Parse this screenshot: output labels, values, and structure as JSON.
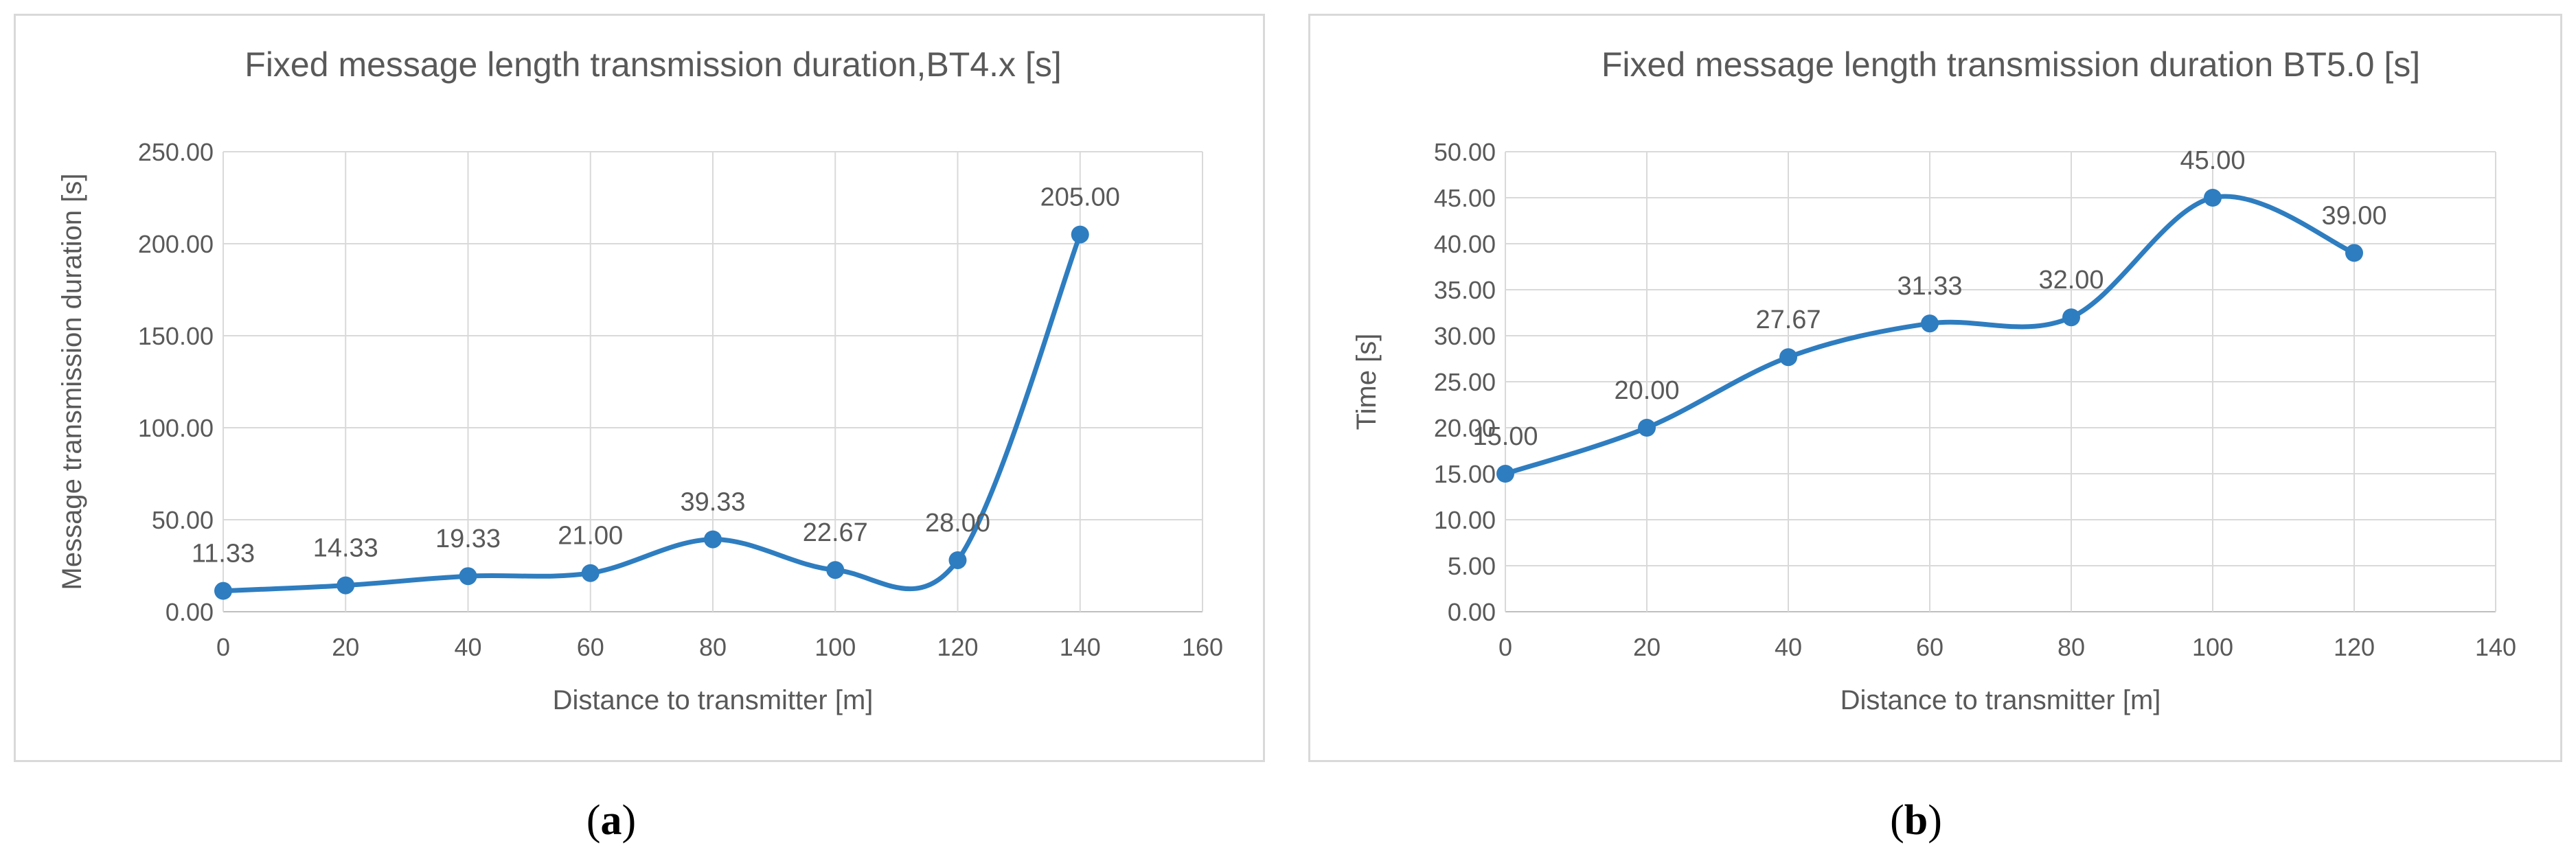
{
  "colors": {
    "series": "#2E7DC0",
    "grid": "#d9d9d9",
    "text": "#595959",
    "axis": "#bfbfbf"
  },
  "captions": {
    "a_letter": "a",
    "b_letter": "b"
  },
  "chart_data": [
    {
      "type": "line",
      "title": "Fixed message length transmission duration,BT4.x  [s]",
      "xlabel": "Distance to transmitter [m]",
      "ylabel": "Message transmission duration [s]",
      "x": [
        0,
        20,
        40,
        60,
        80,
        100,
        120,
        140
      ],
      "values": [
        11.33,
        14.33,
        19.33,
        21.0,
        39.33,
        22.67,
        28.0,
        205.0
      ],
      "data_labels": [
        "11.33",
        "14.33",
        "19.33",
        "21.00",
        "39.33",
        "22.67",
        "28.00",
        "205.00"
      ],
      "xlim": [
        0,
        160
      ],
      "xticks": [
        "0",
        "20",
        "40",
        "60",
        "80",
        "100",
        "120",
        "140",
        "160"
      ],
      "ylim": [
        0,
        250
      ],
      "yticks": [
        "0.00",
        "50.00",
        "100.00",
        "150.00",
        "200.00",
        "250.00"
      ],
      "smooth": true,
      "grid": true
    },
    {
      "type": "line",
      "title": "Fixed message length transmission duration BT5.0  [s]",
      "xlabel": "Distance to transmitter [m]",
      "ylabel": "Time [s]",
      "x": [
        0,
        20,
        40,
        60,
        80,
        100,
        120
      ],
      "values": [
        15.0,
        20.0,
        27.67,
        31.33,
        32.0,
        45.0,
        39.0
      ],
      "data_labels": [
        "15.00",
        "20.00",
        "27.67",
        "31.33",
        "32.00",
        "45.00",
        "39.00"
      ],
      "xlim": [
        0,
        140
      ],
      "xticks": [
        "0",
        "20",
        "40",
        "60",
        "80",
        "100",
        "120",
        "140"
      ],
      "ylim": [
        0,
        50
      ],
      "yticks": [
        "0.00",
        "5.00",
        "10.00",
        "15.00",
        "20.00",
        "25.00",
        "30.00",
        "35.00",
        "40.00",
        "45.00",
        "50.00"
      ],
      "smooth": true,
      "grid": true
    }
  ]
}
